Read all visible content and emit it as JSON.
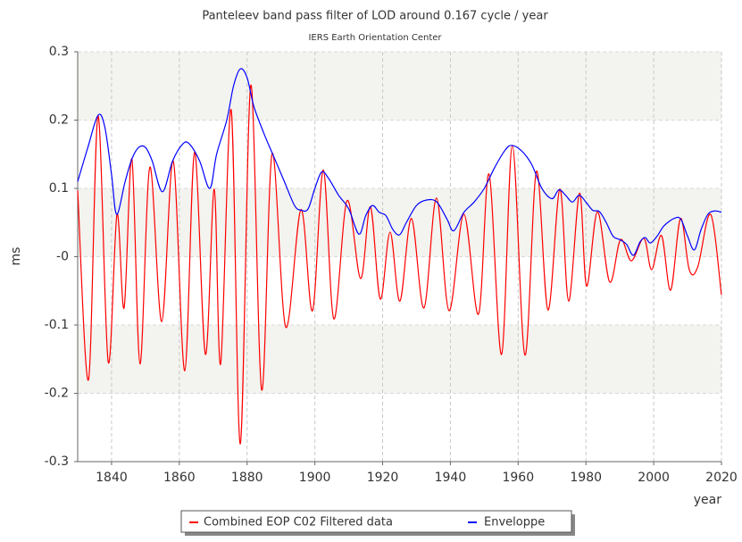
{
  "chart_data": {
    "type": "line",
    "title": "Panteleev band pass filter of LOD around 0.167 cycle / year",
    "subtitle": "IERS Earth Orientation Center",
    "y_label": "ms",
    "x_label": "year",
    "xlim": [
      1830,
      2020
    ],
    "xticks": [
      1840,
      1860,
      1880,
      1900,
      1920,
      1940,
      1960,
      1980,
      2000,
      2020
    ],
    "ylim": [
      -0.3,
      0.3
    ],
    "yticks": [
      -0.3,
      -0.2,
      -0.1,
      {
        "value": 0,
        "label": "-0"
      },
      0.1,
      0.2,
      0.3
    ],
    "grid": true,
    "series": [
      {
        "name": "Combined EOP C02 Filtered data",
        "color": "#ff0000",
        "x": [
          1830,
          1833.2,
          1836,
          1839,
          1841.6,
          1843.7,
          1846,
          1848.4,
          1851.3,
          1854.8,
          1858.2,
          1861.6,
          1864.5,
          1867.7,
          1870.3,
          1872.2,
          1875.3,
          1878,
          1881.1,
          1884.3,
          1887.4,
          1891.4,
          1895.9,
          1899.3,
          1902.5,
          1905.6,
          1909.5,
          1913.5,
          1916.4,
          1919.3,
          1922.2,
          1925.1,
          1928.5,
          1932.2,
          1935.9,
          1939.6,
          1944,
          1948.3,
          1951.4,
          1955.1,
          1958.3,
          1962,
          1965.4,
          1968.8,
          1972.3,
          1974.9,
          1978.1,
          1980.2,
          1983.4,
          1987,
          1990.2,
          1993.4,
          1997.1,
          1999.4,
          2002.3,
          2005,
          2007.9,
          2010.5,
          2013,
          2016.8,
          2020
        ],
        "values": [
          0.097,
          -0.18,
          0.206,
          -0.154,
          0.062,
          -0.075,
          0.143,
          -0.157,
          0.131,
          -0.095,
          0.14,
          -0.167,
          0.153,
          -0.143,
          0.099,
          -0.157,
          0.215,
          -0.274,
          0.251,
          -0.195,
          0.151,
          -0.103,
          0.069,
          -0.079,
          0.127,
          -0.091,
          0.082,
          -0.032,
          0.073,
          -0.062,
          0.036,
          -0.065,
          0.056,
          -0.075,
          0.086,
          -0.079,
          0.062,
          -0.084,
          0.121,
          -0.143,
          0.163,
          -0.144,
          0.125,
          -0.078,
          0.099,
          -0.065,
          0.093,
          -0.043,
          0.066,
          -0.037,
          0.025,
          -0.006,
          0.027,
          -0.019,
          0.031,
          -0.049,
          0.056,
          -0.019,
          -0.015,
          0.062,
          -0.056
        ]
      },
      {
        "name": "Enveloppe",
        "color": "#0000ff",
        "x": [
          1830,
          1833,
          1836,
          1838,
          1840,
          1841.5,
          1844,
          1846,
          1848,
          1850,
          1852,
          1855,
          1858,
          1861,
          1863,
          1866,
          1869,
          1871,
          1874,
          1876,
          1878,
          1880,
          1882,
          1885,
          1888,
          1891,
          1894,
          1896,
          1898,
          1900,
          1902,
          1904,
          1907,
          1910,
          1913,
          1915,
          1917,
          1919,
          1921,
          1923,
          1925,
          1927,
          1930,
          1933,
          1936,
          1939,
          1941,
          1944,
          1947,
          1950,
          1953,
          1956,
          1958,
          1961,
          1964,
          1967,
          1970,
          1972,
          1974,
          1976,
          1978,
          1980,
          1982,
          1984,
          1986,
          1988,
          1990,
          1992,
          1994,
          1996,
          1997.5,
          1999,
          2001,
          2003,
          2006,
          2008,
          2010,
          2012,
          2014,
          2016,
          2018,
          2020
        ],
        "values": [
          0.11,
          0.16,
          0.207,
          0.19,
          0.12,
          0.062,
          0.11,
          0.143,
          0.16,
          0.16,
          0.14,
          0.095,
          0.14,
          0.165,
          0.165,
          0.14,
          0.1,
          0.15,
          0.2,
          0.25,
          0.275,
          0.262,
          0.22,
          0.18,
          0.145,
          0.11,
          0.075,
          0.068,
          0.07,
          0.1,
          0.124,
          0.115,
          0.09,
          0.07,
          0.033,
          0.06,
          0.075,
          0.065,
          0.06,
          0.04,
          0.032,
          0.05,
          0.075,
          0.083,
          0.08,
          0.055,
          0.038,
          0.065,
          0.08,
          0.1,
          0.13,
          0.155,
          0.163,
          0.155,
          0.135,
          0.1,
          0.085,
          0.098,
          0.09,
          0.08,
          0.09,
          0.08,
          0.068,
          0.066,
          0.05,
          0.03,
          0.025,
          0.018,
          0.002,
          0.022,
          0.028,
          0.02,
          0.03,
          0.045,
          0.056,
          0.055,
          0.03,
          0.01,
          0.04,
          0.062,
          0.067,
          0.065
        ]
      }
    ]
  }
}
